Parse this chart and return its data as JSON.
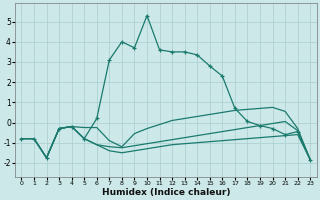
{
  "xlabel": "Humidex (Indice chaleur)",
  "xlim": [
    -0.5,
    23.5
  ],
  "ylim": [
    -2.7,
    5.9
  ],
  "xticks": [
    0,
    1,
    2,
    3,
    4,
    5,
    6,
    7,
    8,
    9,
    10,
    11,
    12,
    13,
    14,
    15,
    16,
    17,
    18,
    19,
    20,
    21,
    22,
    23
  ],
  "yticks": [
    -2,
    -1,
    0,
    1,
    2,
    3,
    4,
    5
  ],
  "bg_color": "#cce8e8",
  "line_color": "#1a7a6e",
  "grid_color": "#aacece",
  "main_x": [
    0,
    1,
    2,
    3,
    4,
    5,
    6,
    7,
    8,
    9,
    10,
    11,
    12,
    13,
    14,
    15,
    16,
    17,
    18,
    19,
    20,
    21,
    22,
    23
  ],
  "main_y": [
    -0.8,
    -0.8,
    -1.75,
    -0.3,
    -0.2,
    -0.8,
    0.2,
    3.1,
    4.0,
    3.7,
    5.3,
    3.6,
    3.5,
    3.5,
    3.35,
    2.8,
    2.3,
    0.7,
    0.05,
    -0.15,
    -0.3,
    -0.6,
    -0.45,
    -1.85
  ],
  "line2_x": [
    0,
    1,
    2,
    3,
    4,
    5,
    6,
    7,
    8,
    9,
    10,
    11,
    12,
    13,
    14,
    15,
    16,
    17,
    18,
    19,
    20,
    21,
    22,
    23
  ],
  "line2_y": [
    -0.8,
    -0.8,
    -1.75,
    -0.3,
    -0.2,
    -0.25,
    -0.25,
    -0.9,
    -1.2,
    -0.55,
    -0.3,
    -0.1,
    0.1,
    0.2,
    0.3,
    0.4,
    0.5,
    0.6,
    0.65,
    0.7,
    0.75,
    0.55,
    -0.3,
    -1.85
  ],
  "line3_x": [
    0,
    1,
    2,
    3,
    4,
    5,
    6,
    7,
    8,
    9,
    10,
    11,
    12,
    13,
    14,
    15,
    16,
    17,
    18,
    19,
    20,
    21,
    22,
    23
  ],
  "line3_y": [
    -0.8,
    -0.8,
    -1.75,
    -0.3,
    -0.2,
    -0.8,
    -1.1,
    -1.2,
    -1.25,
    -1.15,
    -1.05,
    -0.95,
    -0.85,
    -0.75,
    -0.65,
    -0.55,
    -0.45,
    -0.35,
    -0.25,
    -0.15,
    -0.05,
    0.05,
    -0.4,
    -1.85
  ],
  "line4_x": [
    0,
    1,
    2,
    3,
    4,
    5,
    6,
    7,
    8,
    9,
    10,
    11,
    12,
    13,
    14,
    15,
    16,
    17,
    18,
    19,
    20,
    21,
    22,
    23
  ],
  "line4_y": [
    -0.8,
    -0.8,
    -1.75,
    -0.3,
    -0.2,
    -0.8,
    -1.1,
    -1.4,
    -1.5,
    -1.4,
    -1.3,
    -1.2,
    -1.1,
    -1.05,
    -1.0,
    -0.95,
    -0.9,
    -0.85,
    -0.8,
    -0.75,
    -0.7,
    -0.65,
    -0.6,
    -1.85
  ]
}
